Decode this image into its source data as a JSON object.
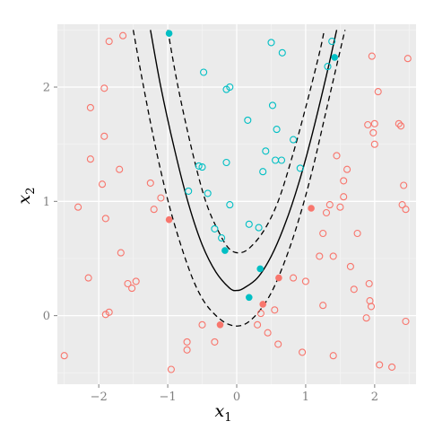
{
  "chart_data": {
    "type": "scatter",
    "title": "",
    "xlabel": "x",
    "xlabel_sub": "1",
    "ylabel": "x",
    "ylabel_sub": "2",
    "xlim": [
      -2.6,
      2.6
    ],
    "ylim": [
      -0.6,
      2.55
    ],
    "x_ticks": [
      -2,
      -1,
      0,
      1,
      2
    ],
    "x_tick_labels": [
      "−2",
      "−1",
      "0",
      "1",
      "2"
    ],
    "y_ticks": [
      0,
      1,
      2
    ],
    "y_tick_labels": [
      "0",
      "1",
      "2"
    ],
    "grid": true,
    "legend": "none",
    "colors": {
      "panel": "#ebebeb",
      "grid_major": "#ffffff",
      "grid_minor": "#f5f5f5",
      "class_red": "#f8766d",
      "class_teal": "#00bfc4",
      "curve": "#000000"
    },
    "decision_boundary": {
      "description": "parabola-like boundary x2 = 0.2*(e^(2*x1)+e^(-2*x1))... approximated",
      "vertex": [
        0.0,
        0.22
      ],
      "margin_upper_vertex": [
        0.0,
        0.55
      ],
      "margin_lower_vertex": [
        -0.2,
        -0.1
      ],
      "solid": [
        [
          -1.25,
          2.5
        ],
        [
          -1.1,
          2.0
        ],
        [
          -0.9,
          1.45
        ],
        [
          -0.7,
          0.98
        ],
        [
          -0.5,
          0.62
        ],
        [
          -0.3,
          0.38
        ],
        [
          -0.1,
          0.24
        ],
        [
          0.0,
          0.22
        ],
        [
          0.1,
          0.24
        ],
        [
          0.3,
          0.33
        ],
        [
          0.5,
          0.52
        ],
        [
          0.7,
          0.8
        ],
        [
          0.9,
          1.16
        ],
        [
          1.1,
          1.6
        ],
        [
          1.3,
          2.1
        ],
        [
          1.45,
          2.5
        ]
      ],
      "dashed_upper": [
        [
          -1.0,
          2.5
        ],
        [
          -0.85,
          2.0
        ],
        [
          -0.65,
          1.45
        ],
        [
          -0.45,
          1.0
        ],
        [
          -0.25,
          0.72
        ],
        [
          -0.1,
          0.58
        ],
        [
          0.05,
          0.55
        ],
        [
          0.2,
          0.6
        ],
        [
          0.4,
          0.75
        ],
        [
          0.6,
          1.0
        ],
        [
          0.8,
          1.38
        ],
        [
          1.0,
          1.82
        ],
        [
          1.2,
          2.3
        ],
        [
          1.27,
          2.5
        ]
      ],
      "dashed_lower": [
        [
          -1.5,
          2.5
        ],
        [
          -1.35,
          2.0
        ],
        [
          -1.15,
          1.4
        ],
        [
          -0.95,
          0.9
        ],
        [
          -0.7,
          0.42
        ],
        [
          -0.5,
          0.15
        ],
        [
          -0.3,
          0.0
        ],
        [
          -0.1,
          -0.08
        ],
        [
          0.1,
          -0.08
        ],
        [
          0.3,
          0.02
        ],
        [
          0.5,
          0.2
        ],
        [
          0.7,
          0.48
        ],
        [
          0.9,
          0.84
        ],
        [
          1.1,
          1.28
        ],
        [
          1.3,
          1.8
        ],
        [
          1.5,
          2.32
        ],
        [
          1.57,
          2.5
        ]
      ]
    },
    "series": [
      {
        "name": "",
        "color": "#f8766d",
        "marker": "open-circle",
        "points": [
          [
            -2.5,
            -0.35
          ],
          [
            -2.3,
            0.95
          ],
          [
            -2.15,
            0.33
          ],
          [
            -2.12,
            1.82
          ],
          [
            -2.12,
            1.37
          ],
          [
            -1.95,
            1.15
          ],
          [
            -1.92,
            1.57
          ],
          [
            -1.92,
            1.99
          ],
          [
            -1.9,
            0.85
          ],
          [
            -1.9,
            0.01
          ],
          [
            -1.85,
            0.03
          ],
          [
            -1.85,
            2.4
          ],
          [
            -1.7,
            1.28
          ],
          [
            -1.68,
            0.55
          ],
          [
            -1.65,
            2.45
          ],
          [
            -1.58,
            0.28
          ],
          [
            -1.52,
            0.24
          ],
          [
            -1.46,
            0.3
          ],
          [
            -1.25,
            1.16
          ],
          [
            -1.2,
            0.93
          ],
          [
            -1.1,
            1.03
          ],
          [
            -0.95,
            -0.47
          ],
          [
            -0.72,
            -0.3
          ],
          [
            -0.72,
            -0.23
          ],
          [
            -0.5,
            -0.08
          ],
          [
            -0.32,
            -0.23
          ],
          [
            0.3,
            -0.08
          ],
          [
            0.35,
            0.02
          ],
          [
            0.45,
            -0.15
          ],
          [
            0.55,
            0.05
          ],
          [
            0.6,
            -0.25
          ],
          [
            0.82,
            0.33
          ],
          [
            0.95,
            -0.32
          ],
          [
            1.0,
            0.3
          ],
          [
            1.2,
            0.52
          ],
          [
            1.25,
            0.72
          ],
          [
            1.25,
            0.09
          ],
          [
            1.3,
            0.9
          ],
          [
            1.35,
            0.97
          ],
          [
            1.4,
            0.52
          ],
          [
            1.4,
            -0.35
          ],
          [
            1.45,
            1.4
          ],
          [
            1.5,
            0.95
          ],
          [
            1.55,
            1.18
          ],
          [
            1.55,
            1.04
          ],
          [
            1.6,
            1.28
          ],
          [
            1.65,
            0.43
          ],
          [
            1.7,
            0.23
          ],
          [
            1.75,
            0.72
          ],
          [
            1.9,
            1.67
          ],
          [
            1.92,
            0.28
          ],
          [
            1.93,
            0.13
          ],
          [
            1.95,
            0.08
          ],
          [
            1.96,
            2.27
          ],
          [
            1.98,
            1.6
          ],
          [
            2.0,
            1.68
          ],
          [
            2.0,
            1.5
          ],
          [
            2.05,
            1.96
          ],
          [
            2.07,
            -0.43
          ],
          [
            2.25,
            -0.45
          ],
          [
            2.35,
            1.68
          ],
          [
            2.38,
            1.66
          ],
          [
            2.4,
            0.97
          ],
          [
            2.42,
            1.14
          ],
          [
            2.45,
            -0.05
          ],
          [
            2.48,
            2.25
          ],
          [
            2.45,
            0.93
          ],
          [
            1.88,
            -0.02
          ]
        ]
      },
      {
        "name": "",
        "color": "#f8766d",
        "marker": "filled-circle",
        "points": [
          [
            -0.98,
            0.84
          ],
          [
            -0.24,
            -0.08
          ],
          [
            0.38,
            0.1
          ],
          [
            0.61,
            0.33
          ],
          [
            1.08,
            0.94
          ]
        ]
      },
      {
        "name": "",
        "color": "#00bfc4",
        "marker": "open-circle",
        "points": [
          [
            -0.7,
            1.09
          ],
          [
            -0.55,
            1.31
          ],
          [
            -0.5,
            1.3
          ],
          [
            -0.48,
            2.13
          ],
          [
            -0.42,
            1.07
          ],
          [
            -0.32,
            0.76
          ],
          [
            -0.22,
            0.68
          ],
          [
            -0.15,
            1.98
          ],
          [
            -0.15,
            1.34
          ],
          [
            -0.1,
            2.0
          ],
          [
            -0.1,
            0.97
          ],
          [
            0.16,
            1.71
          ],
          [
            0.18,
            0.8
          ],
          [
            0.32,
            0.77
          ],
          [
            0.38,
            1.26
          ],
          [
            0.42,
            1.44
          ],
          [
            0.5,
            2.39
          ],
          [
            0.52,
            1.84
          ],
          [
            0.56,
            1.36
          ],
          [
            0.58,
            1.63
          ],
          [
            0.65,
            1.36
          ],
          [
            0.66,
            2.3
          ],
          [
            0.82,
            1.54
          ],
          [
            0.92,
            1.29
          ],
          [
            1.32,
            2.18
          ],
          [
            1.38,
            2.4
          ]
        ]
      },
      {
        "name": "",
        "color": "#00bfc4",
        "marker": "filled-circle",
        "points": [
          [
            -0.98,
            2.47
          ],
          [
            -0.17,
            0.57
          ],
          [
            0.18,
            0.16
          ],
          [
            0.34,
            0.41
          ],
          [
            1.42,
            2.26
          ]
        ]
      }
    ]
  }
}
